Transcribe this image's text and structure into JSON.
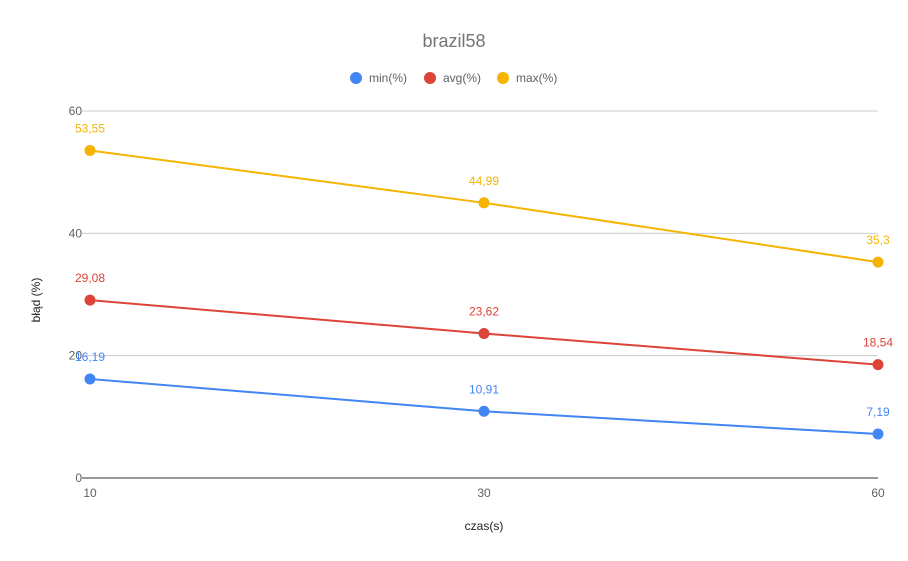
{
  "chart_data": {
    "type": "line",
    "title": "brazil58",
    "xlabel": "czas(s)",
    "ylabel": "błąd (%)",
    "categories": [
      "10",
      "30",
      "60"
    ],
    "ylim": [
      0,
      60
    ],
    "yticks": [
      "0",
      "20",
      "40",
      "60"
    ],
    "grid": true,
    "legend_position": "top",
    "series": [
      {
        "name": "min(%)",
        "color": "#4285f4",
        "values": [
          16.19,
          10.91,
          7.19
        ],
        "labels": [
          "16,19",
          "10,91",
          "7,19"
        ]
      },
      {
        "name": "avg(%)",
        "color": "#db4437",
        "values": [
          29.08,
          23.62,
          18.54
        ],
        "labels": [
          "29,08",
          "23,62",
          "18,54"
        ]
      },
      {
        "name": "max(%)",
        "color": "#f4b400",
        "values": [
          53.55,
          44.99,
          35.3
        ],
        "labels": [
          "53,55",
          "44,99",
          "35,3"
        ]
      }
    ]
  }
}
